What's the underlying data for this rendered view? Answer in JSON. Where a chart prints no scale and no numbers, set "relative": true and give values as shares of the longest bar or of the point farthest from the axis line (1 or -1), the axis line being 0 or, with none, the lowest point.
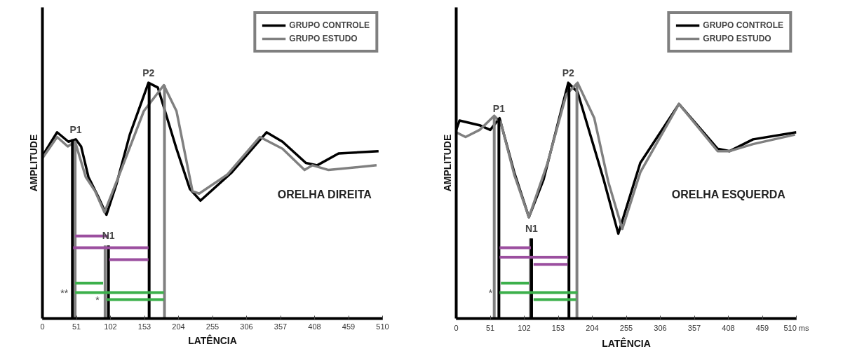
{
  "chart_data": [
    {
      "type": "line",
      "relative": true,
      "xlabel": "LATÊNCIA",
      "ylabel": "AMPLITUDE",
      "xlim": [
        0,
        510
      ],
      "xticks": [
        0,
        51,
        102,
        153,
        204,
        255,
        306,
        357,
        408,
        459,
        510
      ],
      "tick_labels": "x",
      "grid": false,
      "legend": "top right",
      "line_style": "solid",
      "marker": "none",
      "series": [
        {
          "name": "GRUPO CONTROLE",
          "color": "#000000",
          "x": [
            0,
            22,
            39,
            50,
            58,
            69,
            83,
            96,
            111,
            131,
            159,
            173,
            201,
            221,
            237,
            284,
            336,
            360,
            395,
            412,
            444,
            504
          ],
          "values": [
            0.69,
            0.79,
            0.75,
            0.76,
            0.73,
            0.6,
            0.52,
            0.44,
            0.57,
            0.78,
            1.0,
            0.98,
            0.72,
            0.55,
            0.5,
            0.62,
            0.79,
            0.75,
            0.66,
            0.65,
            0.7,
            0.71
          ]
        },
        {
          "name": "GRUPO ESTUDO",
          "color": "#808080",
          "x": [
            0,
            22,
            38,
            49,
            65,
            79,
            93,
            118,
            152,
            182,
            201,
            225,
            235,
            277,
            326,
            360,
            393,
            405,
            429,
            501
          ],
          "values": [
            0.68,
            0.77,
            0.73,
            0.75,
            0.6,
            0.54,
            0.45,
            0.63,
            0.88,
            0.99,
            0.88,
            0.54,
            0.53,
            0.61,
            0.77,
            0.72,
            0.63,
            0.65,
            0.63,
            0.65
          ]
        },
        {
          "color": "#000000",
          "x": [
            45,
            45
          ],
          "values": [
            0,
            0.76
          ]
        },
        {
          "color": "#808080",
          "x": [
            49,
            49
          ],
          "values": [
            0,
            0.75
          ]
        },
        {
          "color": "#808080",
          "x": [
            94,
            94
          ],
          "values": [
            0,
            0.31
          ]
        },
        {
          "color": "#000000",
          "x": [
            99,
            99
          ],
          "values": [
            0,
            0.31
          ]
        },
        {
          "color": "#000000",
          "x": [
            160,
            160
          ],
          "values": [
            0,
            1.0
          ]
        },
        {
          "color": "#808080",
          "x": [
            183,
            183
          ],
          "values": [
            0,
            0.99
          ]
        },
        {
          "color": "#9b4f9f",
          "x": [
            49,
            99
          ],
          "values": [
            0.35,
            0.35
          ]
        },
        {
          "color": "#9b4f9f",
          "x": [
            46,
            159
          ],
          "values": [
            0.3,
            0.3
          ]
        },
        {
          "color": "#9b4f9f",
          "x": [
            100,
            159
          ],
          "values": [
            0.25,
            0.25
          ]
        },
        {
          "color": "#3cb04b",
          "x": [
            49,
            91
          ],
          "values": [
            0.15,
            0.15
          ]
        },
        {
          "color": "#3cb04b",
          "x": [
            49,
            182
          ],
          "values": [
            0.11,
            0.11
          ]
        },
        {
          "color": "#3cb04b",
          "x": [
            96,
            182
          ],
          "values": [
            0.08,
            0.08
          ]
        }
      ],
      "annotations": [
        "ORELHA DIREITA",
        {
          "text": "P1",
          "x": 50,
          "y": 0.76
        },
        {
          "text": "N1",
          "x": 99,
          "y": 0.31
        },
        {
          "text": "P2",
          "x": 159,
          "y": 1.0
        },
        {
          "text": "**",
          "x": 49,
          "y": 0.11
        },
        {
          "text": "*",
          "x": 96,
          "y": 0.08
        }
      ]
    },
    {
      "type": "line",
      "relative": true,
      "xlabel": "LATÊNCIA",
      "ylabel": "AMPLITUDE",
      "xlim": [
        0,
        510
      ],
      "xticks": [
        0,
        51,
        102,
        153,
        204,
        255,
        306,
        357,
        408,
        459,
        {
          "value": 510,
          "label": "510 ms"
        }
      ],
      "tick_labels": "x",
      "grid": false,
      "legend": "top right",
      "line_style": "solid",
      "marker": "none",
      "series": [
        {
          "name": "GRUPO CONTROLE",
          "color": "#000000",
          "x": [
            0,
            5,
            35,
            51,
            65,
            87,
            109,
            131,
            168,
            182,
            221,
            243,
            276,
            334,
            392,
            410,
            445,
            510
          ],
          "values": [
            0.8,
            0.84,
            0.82,
            0.8,
            0.85,
            0.62,
            0.43,
            0.59,
            1.0,
            0.96,
            0.59,
            0.36,
            0.66,
            0.91,
            0.72,
            0.71,
            0.76,
            0.79
          ]
        },
        {
          "name": "GRUPO ESTUDO",
          "color": "#808080",
          "x": [
            0,
            14,
            35,
            57,
            67,
            87,
            109,
            137,
            165,
            182,
            207,
            228,
            249,
            276,
            334,
            392,
            410,
            445,
            508
          ],
          "values": [
            0.79,
            0.77,
            0.8,
            0.86,
            0.83,
            0.61,
            0.43,
            0.66,
            0.95,
            1.0,
            0.85,
            0.58,
            0.38,
            0.62,
            0.91,
            0.71,
            0.71,
            0.74,
            0.78
          ]
        },
        {
          "color": "#808080",
          "x": [
            57,
            57
          ],
          "values": [
            0,
            0.86
          ]
        },
        {
          "color": "#000000",
          "x": [
            64,
            64
          ],
          "values": [
            0,
            0.85
          ]
        },
        {
          "color": "#808080",
          "x": [
            111,
            111
          ],
          "values": [
            0,
            0.34
          ]
        },
        {
          "color": "#000000",
          "x": [
            113,
            113
          ],
          "values": [
            0,
            0.34
          ]
        },
        {
          "color": "#000000",
          "x": [
            169,
            169
          ],
          "values": [
            0,
            1.0
          ]
        },
        {
          "color": "#808080",
          "x": [
            181,
            181
          ],
          "values": [
            0,
            1.0
          ]
        },
        {
          "color": "#9b4f9f",
          "x": [
            65,
            112
          ],
          "values": [
            0.3,
            0.3
          ]
        },
        {
          "color": "#9b4f9f",
          "x": [
            65,
            168
          ],
          "values": [
            0.26,
            0.26
          ]
        },
        {
          "color": "#9b4f9f",
          "x": [
            116,
            167
          ],
          "values": [
            0.23,
            0.23
          ]
        },
        {
          "color": "#3cb04b",
          "x": [
            67,
            109
          ],
          "values": [
            0.15,
            0.15
          ]
        },
        {
          "color": "#3cb04b",
          "x": [
            65,
            182
          ],
          "values": [
            0.11,
            0.11
          ]
        },
        {
          "color": "#3cb04b",
          "x": [
            116,
            180
          ],
          "values": [
            0.08,
            0.08
          ]
        }
      ],
      "annotations": [
        "ORELHA ESQUERDA",
        {
          "text": "P1",
          "x": 64,
          "y": 0.85
        },
        {
          "text": "N1",
          "x": 113,
          "y": 0.34
        },
        {
          "text": "P2",
          "x": 168,
          "y": 1.0
        },
        {
          "text": "*",
          "x": 65,
          "y": 0.11
        }
      ]
    }
  ]
}
